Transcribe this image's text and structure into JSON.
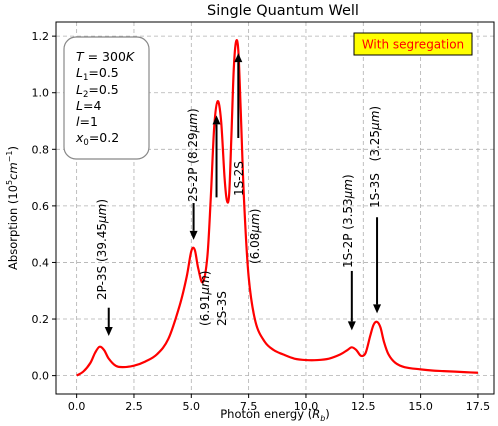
{
  "chart_data": {
    "type": "line",
    "title": "Single Quantum Well",
    "xlabel": "Photon energy (R_b)",
    "ylabel": "Absorption (10^5 cm^-1)",
    "xlim": [
      -0.9,
      18.2
    ],
    "ylim": [
      -0.065,
      1.25
    ],
    "xticks": [
      0.0,
      2.5,
      5.0,
      7.5,
      10.0,
      12.5,
      15.0,
      17.5
    ],
    "xtick_labels": [
      "0.0",
      "2.5",
      "5.0",
      "7.5",
      "10.0",
      "12.5",
      "15.0",
      "17.5"
    ],
    "yticks": [
      0.0,
      0.2,
      0.4,
      0.6,
      0.8,
      1.0,
      1.2
    ],
    "ytick_labels": [
      "0.0",
      "0.2",
      "0.4",
      "0.6",
      "0.8",
      "1.0",
      "1.2"
    ],
    "grid": true,
    "legend": "With segregation",
    "legend_placement": "top-right",
    "parameters_box": [
      "T = 300K",
      "L1 = 0.5",
      "L2 = 0.5",
      "L = 4",
      "l = 1",
      "x0 = 0.2"
    ],
    "series": [
      {
        "color": "#ff0000",
        "x": [
          0.0,
          0.3,
          0.6,
          0.8,
          1.0,
          1.2,
          1.4,
          1.7,
          2.0,
          2.5,
          3.0,
          3.5,
          4.0,
          4.5,
          4.8,
          5.0,
          5.15,
          5.3,
          5.5,
          5.7,
          5.85,
          6.0,
          6.15,
          6.3,
          6.45,
          6.55,
          6.65,
          6.75,
          6.85,
          6.95,
          7.05,
          7.15,
          7.3,
          7.5,
          7.8,
          8.2,
          8.6,
          9.0,
          9.5,
          10.0,
          10.5,
          11.0,
          11.5,
          11.8,
          12.0,
          12.2,
          12.4,
          12.6,
          12.8,
          12.95,
          13.1,
          13.25,
          13.4,
          13.6,
          13.9,
          14.3,
          15.0,
          15.5,
          16.0,
          16.5,
          17.0,
          17.5
        ],
        "y": [
          0.0,
          0.015,
          0.045,
          0.08,
          0.102,
          0.09,
          0.06,
          0.035,
          0.03,
          0.035,
          0.05,
          0.075,
          0.13,
          0.25,
          0.35,
          0.44,
          0.445,
          0.38,
          0.33,
          0.42,
          0.63,
          0.88,
          0.97,
          0.9,
          0.7,
          0.62,
          0.64,
          0.85,
          1.08,
          1.18,
          1.15,
          0.95,
          0.62,
          0.35,
          0.19,
          0.12,
          0.09,
          0.075,
          0.06,
          0.055,
          0.055,
          0.06,
          0.075,
          0.09,
          0.1,
          0.09,
          0.07,
          0.08,
          0.14,
          0.18,
          0.19,
          0.17,
          0.12,
          0.075,
          0.045,
          0.03,
          0.022,
          0.018,
          0.016,
          0.014,
          0.012,
          0.01
        ]
      }
    ],
    "annotations": [
      {
        "text": "2P-3S (39.45μm)",
        "arrow_tip": [
          1.4,
          0.14
        ],
        "arrow_tail": [
          1.4,
          0.24
        ]
      },
      {
        "text": "2S-2P (8.29μm)",
        "arrow_tip": [
          5.1,
          0.48
        ],
        "arrow_tail": [
          5.1,
          0.61
        ]
      },
      {
        "text": "2S-3S (6.91μm)",
        "arrow_tip": [
          6.1,
          0.92
        ],
        "arrow_tail": [
          6.1,
          0.63
        ]
      },
      {
        "text": "1S-2S (6.08μm)",
        "arrow_tip": [
          7.05,
          1.14
        ],
        "arrow_tail": [
          7.05,
          0.84
        ]
      },
      {
        "text": "1S-2P (3.53μm)",
        "arrow_tip": [
          12.0,
          0.16
        ],
        "arrow_tail": [
          12.0,
          0.37
        ]
      },
      {
        "text": "1S-3S (3.25μm)",
        "arrow_tip": [
          13.1,
          0.22
        ],
        "arrow_tail": [
          13.1,
          0.56
        ]
      }
    ]
  }
}
